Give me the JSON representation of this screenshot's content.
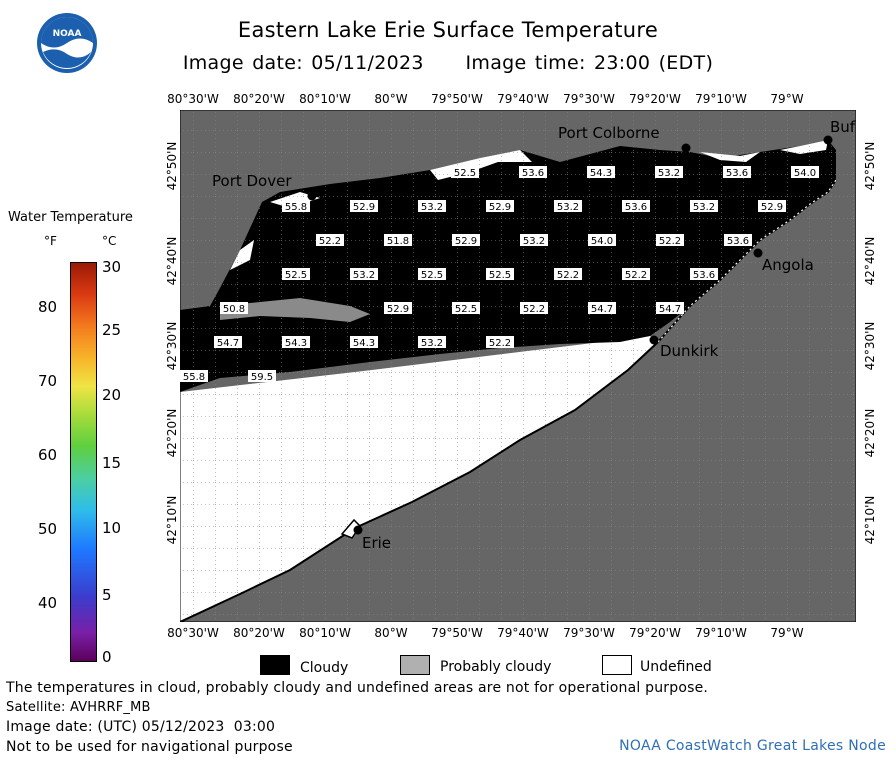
{
  "title": "Eastern Lake Erie Surface Temperature",
  "subtitle": "Image date: 05/11/2023     Image time: 23:00 (EDT)",
  "logo": {
    "text": "NOAA"
  },
  "legend": {
    "title": "Water Temperature",
    "unit_f": "°F",
    "unit_c": "°C",
    "f_ticks": [
      "80",
      "70",
      "60",
      "50",
      "40"
    ],
    "c_ticks": [
      "30",
      "25",
      "20",
      "15",
      "10",
      "5",
      "0"
    ]
  },
  "axes": {
    "lon_top": [
      "80°30'W",
      "80°20'W",
      "80°10'W",
      "80°W",
      "79°50'W",
      "79°40'W",
      "79°30'W",
      "79°20'W",
      "79°10'W",
      "79°W"
    ],
    "lon_bottom": [
      "80°30'W",
      "80°20'W",
      "80°10'W",
      "80°W",
      "79°50'W",
      "79°40'W",
      "79°30'W",
      "79°20'W",
      "79°10'W",
      "79°W"
    ],
    "lat_left": [
      "42°50'N",
      "42°40'N",
      "42°30'N",
      "42°20'N",
      "42°10'N"
    ],
    "lat_right": [
      "42°50'N",
      "42°40'N",
      "42°30'N",
      "42°20'N",
      "42°10'N"
    ]
  },
  "places": {
    "port_colborne": "Port Colborne",
    "port_dover": "Port Dover",
    "buffalo": "Buf",
    "angola": "Angola",
    "dunkirk": "Dunkirk",
    "erie": "Erie"
  },
  "temps": [
    "52.5",
    "53.6",
    "54.3",
    "53.2",
    "53.6",
    "54.0",
    "55.8",
    "52.9",
    "53.2",
    "52.9",
    "53.2",
    "53.6",
    "53.2",
    "52.9",
    "52.2",
    "51.8",
    "52.9",
    "53.2",
    "54.0",
    "52.2",
    "53.6",
    "52.5",
    "53.2",
    "52.5",
    "52.5",
    "52.2",
    "52.2",
    "53.6",
    "50.8",
    "52.9",
    "52.5",
    "52.2",
    "54.7",
    "54.7",
    "54.7",
    "54.3",
    "54.3",
    "53.2",
    "52.2",
    "55.8",
    "59.5"
  ],
  "key": {
    "cloudy": "Cloudy",
    "probably_cloudy": "Probably cloudy",
    "undefined": "Undefined"
  },
  "footer": {
    "disclaimer": "The temperatures in cloud, probably cloudy and undefined areas are not for operational purpose.",
    "satellite": "Satellite: AVHRRF_MB",
    "utc_date": "Image date: (UTC) 05/12/2023  03:00",
    "nav_warning": "Not to be used for navigational purpose",
    "credit": "NOAA CoastWatch Great Lakes Node"
  },
  "colors": {
    "land": "#666666",
    "cloud": "#000000",
    "probably_cloud": "#888888",
    "undefined": "#ffffff",
    "credit_text": "#2f6fb5"
  }
}
